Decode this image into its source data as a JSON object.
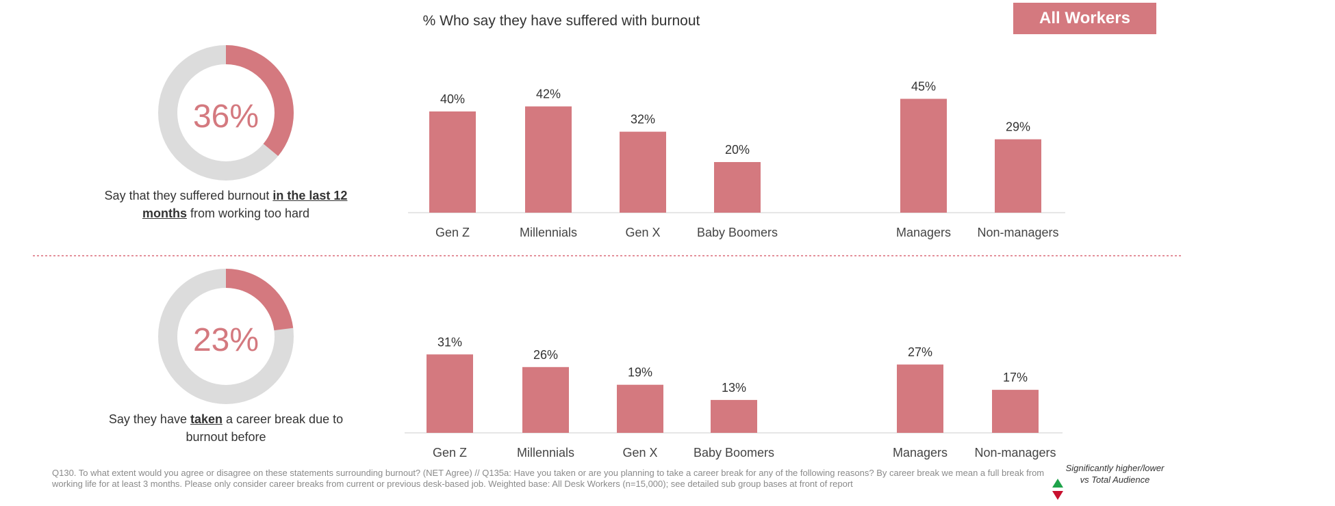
{
  "header": {
    "title": "% Who say they have suffered with burnout",
    "audience_tag": "All Workers"
  },
  "rows": [
    {
      "id": "burnout",
      "donut": {
        "value": 36,
        "label": "36%"
      },
      "caption": {
        "pre": "Say that they suffered burnout ",
        "underline": "in the last 12 months",
        "post": " from working too hard"
      }
    },
    {
      "id": "career-break",
      "donut": {
        "value": 23,
        "label": "23%"
      },
      "caption": {
        "pre": "Say they have ",
        "underline": "taken",
        "post": " a career break due to burnout before"
      }
    }
  ],
  "chart_data": [
    {
      "type": "bar",
      "title": "% Who say they have suffered with burnout",
      "categories": [
        "Gen Z",
        "Millennials",
        "Gen X",
        "Baby Boomers",
        "Managers",
        "Non-managers"
      ],
      "values": [
        40,
        42,
        32,
        20,
        45,
        29
      ],
      "labels": [
        "40%",
        "42%",
        "32%",
        "20%",
        "45%",
        "29%"
      ],
      "ylim": [
        0,
        45
      ]
    },
    {
      "type": "bar",
      "title": "Say they have taken a career break due to burnout before",
      "categories": [
        "Gen Z",
        "Millennials",
        "Gen X",
        "Baby Boomers",
        "Managers",
        "Non-managers"
      ],
      "values": [
        31,
        26,
        19,
        13,
        27,
        17
      ],
      "labels": [
        "31%",
        "26%",
        "19%",
        "13%",
        "27%",
        "17%"
      ],
      "ylim": [
        0,
        45
      ]
    }
  ],
  "footnote": "Q130. To what extent would you agree or disagree on these statements surrounding burnout? (NET Agree) // Q135a: Have you taken or are you planning to take a career break for any of the following reasons? By career break we mean a full break from working life for at least 3 months. Please only consider career breaks from current or previous desk-based job. Weighted base: All Desk Workers (n=15,000); see detailed sub group bases at front of report",
  "legend": {
    "text": "Significantly higher/lower vs Total Audience",
    "up_color": "#1ea34a",
    "down_color": "#c8102e"
  },
  "colors": {
    "accent": "#d4797f",
    "donut_track": "#dcdcdc",
    "divider": "#e3909a"
  }
}
